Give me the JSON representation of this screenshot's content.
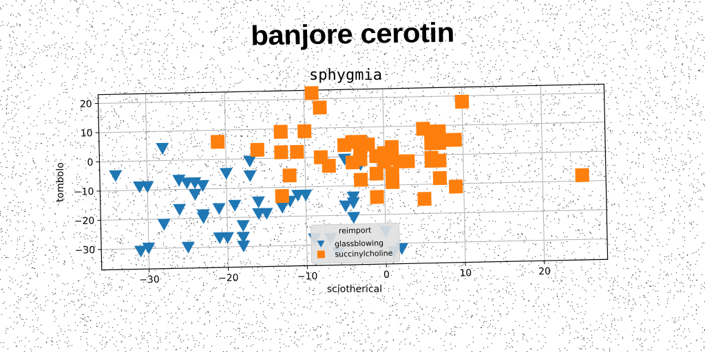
{
  "page_title": "banjore cerotin",
  "chart_data": {
    "type": "scatter",
    "title": "sphygmia",
    "xlabel": "sciotherical",
    "ylabel": "tombolo",
    "xlim": [
      -36,
      28
    ],
    "ylim": [
      -37,
      23
    ],
    "xticks": [
      -30,
      -20,
      -10,
      0,
      10,
      20
    ],
    "yticks": [
      -30,
      -20,
      -10,
      0,
      10,
      20
    ],
    "grid": true,
    "legend": {
      "title": "reimport",
      "placement": "lower-center"
    },
    "series": [
      {
        "name": "glassblowing",
        "marker": "triangle-down",
        "color": "#1f77b4",
        "points": [
          [
            -28,
            4
          ],
          [
            -34,
            -5
          ],
          [
            -31,
            -9
          ],
          [
            -30,
            -9
          ],
          [
            -26,
            -7
          ],
          [
            -25,
            -8
          ],
          [
            -24,
            -8
          ],
          [
            -23,
            -9
          ],
          [
            -24,
            -12
          ],
          [
            -26,
            -17
          ],
          [
            -23,
            -19
          ],
          [
            -23,
            -20
          ],
          [
            -21,
            -17
          ],
          [
            -20,
            -5
          ],
          [
            -17,
            -1
          ],
          [
            -17,
            -6
          ],
          [
            -16,
            -15
          ],
          [
            -16,
            -19
          ],
          [
            -15,
            -19
          ],
          [
            -19,
            -16
          ],
          [
            -18,
            -23
          ],
          [
            -20,
            -27
          ],
          [
            -21,
            -27
          ],
          [
            -18,
            -27
          ],
          [
            -18,
            -30
          ],
          [
            -25,
            -30
          ],
          [
            -30,
            -30
          ],
          [
            -31,
            -31
          ],
          [
            -28,
            -22
          ],
          [
            -13,
            -17
          ],
          [
            -12,
            -15
          ],
          [
            -11,
            -13
          ],
          [
            -10,
            -13
          ],
          [
            -9,
            -28
          ],
          [
            -7,
            -28
          ],
          [
            -6,
            -33
          ],
          [
            -5,
            -17
          ],
          [
            -4,
            -16
          ],
          [
            -4,
            -14
          ],
          [
            -4,
            -21
          ],
          [
            -5,
            -1
          ],
          [
            -3,
            -3
          ],
          [
            0,
            -26
          ],
          [
            2,
            -32
          ],
          [
            1,
            -33
          ]
        ]
      },
      {
        "name": "succinylcholine",
        "marker": "square",
        "color": "#ff7f0e",
        "points": [
          [
            -9,
            22
          ],
          [
            -8,
            17
          ],
          [
            -21,
            6
          ],
          [
            -16,
            3
          ],
          [
            -13,
            9
          ],
          [
            -10,
            9
          ],
          [
            -13,
            2
          ],
          [
            -11,
            2
          ],
          [
            -12,
            -6
          ],
          [
            -13,
            -13
          ],
          [
            -8,
            0
          ],
          [
            -7,
            -3
          ],
          [
            -5,
            4
          ],
          [
            -4,
            5
          ],
          [
            -3,
            5
          ],
          [
            -3,
            1
          ],
          [
            -4,
            -2
          ],
          [
            -3,
            -1
          ],
          [
            -2,
            4
          ],
          [
            -1,
            0
          ],
          [
            0,
            1
          ],
          [
            0,
            -2
          ],
          [
            1,
            3
          ],
          [
            1,
            -1
          ],
          [
            2,
            -2
          ],
          [
            3,
            -2
          ],
          [
            -1,
            -6
          ],
          [
            1,
            -6
          ],
          [
            1,
            -9
          ],
          [
            -3,
            -8
          ],
          [
            -1,
            -14
          ],
          [
            5,
            9
          ],
          [
            6,
            8
          ],
          [
            7,
            8
          ],
          [
            6,
            4
          ],
          [
            7,
            4
          ],
          [
            8,
            5
          ],
          [
            9,
            5
          ],
          [
            6,
            -1
          ],
          [
            6,
            -2
          ],
          [
            7,
            -2
          ],
          [
            7,
            -8
          ],
          [
            9,
            -11
          ],
          [
            5,
            -15
          ],
          [
            10,
            18
          ],
          [
            25,
            -8
          ]
        ]
      }
    ]
  }
}
